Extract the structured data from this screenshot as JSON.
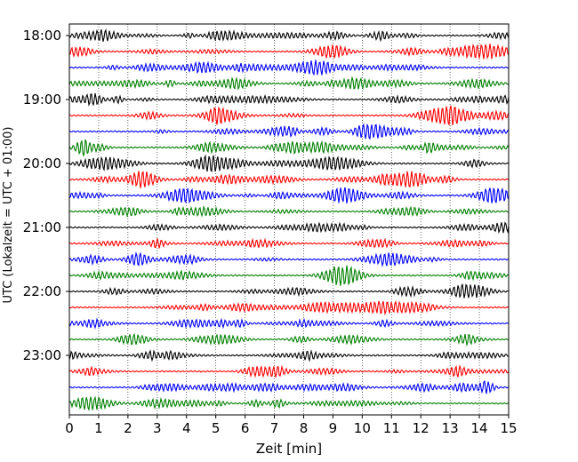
{
  "chart_data": {
    "type": "line",
    "xlabel": "Zeit  [min]",
    "ylabel": "UTC (Lokalzeit = UTC + 01:00)",
    "xlim": [
      0,
      15
    ],
    "x_ticks": [
      0,
      1,
      2,
      3,
      4,
      5,
      6,
      7,
      8,
      9,
      10,
      11,
      12,
      13,
      14,
      15
    ],
    "y_ticks": [
      "18:00",
      "19:00",
      "20:00",
      "21:00",
      "22:00",
      "23:00"
    ],
    "grid": "vertical dotted lines at each minute",
    "trace_offsets": [
      "18:00",
      "18:15",
      "18:30",
      "18:45",
      "19:00",
      "19:15",
      "19:30",
      "19:45",
      "20:00",
      "20:15",
      "20:30",
      "20:45",
      "21:00",
      "21:15",
      "21:30",
      "21:45",
      "22:00",
      "22:15",
      "22:30",
      "22:45",
      "23:00",
      "23:15",
      "23:30",
      "23:45"
    ],
    "trace_colors": [
      "#000000",
      "#ff0000",
      "#0000ff",
      "#008000"
    ],
    "legend": "none"
  }
}
